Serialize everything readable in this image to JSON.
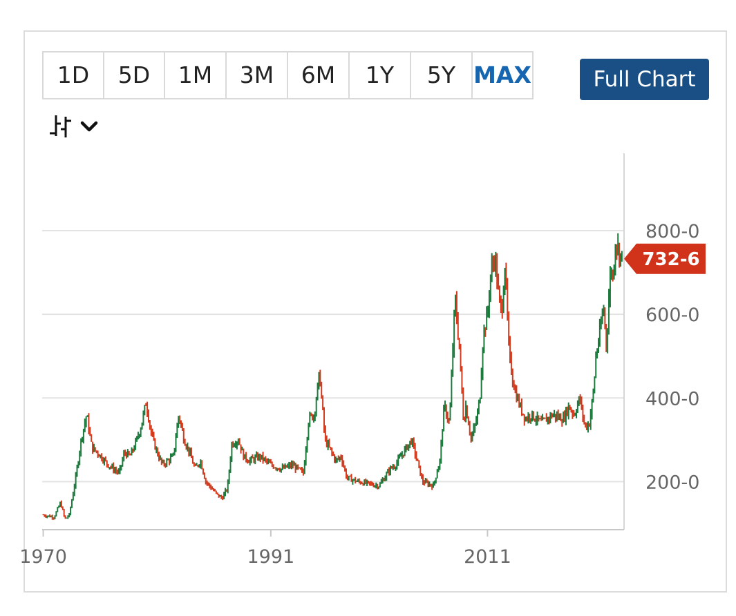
{
  "toolbar": {
    "tabs": [
      {
        "label": "1D"
      },
      {
        "label": "5D"
      },
      {
        "label": "1M"
      },
      {
        "label": "3M"
      },
      {
        "label": "6M"
      },
      {
        "label": "1Y"
      },
      {
        "label": "5Y"
      },
      {
        "label": "MAX"
      }
    ],
    "active_tab": "MAX",
    "full_chart_label": "Full Chart",
    "chart_type_icon": "ohlc-bars-icon",
    "dropdown_icon": "chevron-down-icon"
  },
  "colors": {
    "up": "#1b7a3c",
    "down": "#d23a1e",
    "accent": "#1565b0",
    "button": "#1a4f85",
    "price_tag": "#d0331a"
  },
  "chart_data": {
    "type": "ohlc",
    "title": "",
    "xlabel": "",
    "ylabel": "",
    "x_ticks": [
      "1970",
      "1991",
      "2011"
    ],
    "y_ticks": [
      "200-0",
      "400-0",
      "600-0",
      "800-0"
    ],
    "y_tick_values": [
      200,
      400,
      600,
      800
    ],
    "xlim": [
      1969.9,
      2023.6
    ],
    "ylim": [
      85,
      985
    ],
    "grid": "horizontal",
    "last_price_label": "732-6",
    "last_price": 732.75,
    "series": [
      {
        "x": [
          1970,
          1971,
          1971.6,
          1972,
          1972.4,
          1973,
          1973.5,
          1974,
          1974.5,
          1975,
          1976,
          1977,
          1977.5,
          1978,
          1978.5,
          1979,
          1979.5,
          1980,
          1980.5,
          1981,
          1982,
          1982.5,
          1983,
          1983.5,
          1984,
          1984.5,
          1985,
          1986,
          1986.5,
          1987,
          1987.4,
          1988,
          1988.5,
          1989,
          1990,
          1991,
          1992,
          1993,
          1994,
          1994.5,
          1995,
          1995.5,
          1996,
          1997,
          1997.5,
          1998,
          1999,
          2000,
          2001,
          2002,
          2002.5,
          2003,
          2003.5,
          2004,
          2005,
          2006,
          2006.6,
          2007,
          2007.5,
          2008,
          2008.4,
          2008.8,
          2009,
          2009.5,
          2010,
          2010.3,
          2010.6,
          2011,
          2011.3,
          2011.7,
          2012,
          2012.3,
          2012.6,
          2013,
          2013.5,
          2014,
          2014.5,
          2015,
          2016,
          2016.5,
          2017,
          2018,
          2018.5,
          2019,
          2019.5,
          2020,
          2020.4,
          2020.8,
          2021,
          2021.4,
          2021.7,
          2022,
          2022.2,
          2022.4,
          2022.6,
          2022.8,
          2023,
          2023.3,
          2023.5
        ],
        "close": [
          120,
          115,
          150,
          110,
          120,
          210,
          300,
          360,
          280,
          270,
          240,
          220,
          270,
          260,
          290,
          330,
          390,
          310,
          270,
          240,
          260,
          360,
          300,
          270,
          230,
          250,
          200,
          170,
          160,
          185,
          290,
          300,
          260,
          250,
          260,
          240,
          230,
          240,
          220,
          350,
          360,
          460,
          300,
          250,
          260,
          210,
          200,
          195,
          190,
          230,
          240,
          260,
          280,
          300,
          200,
          190,
          250,
          380,
          340,
          640,
          520,
          340,
          380,
          300,
          350,
          400,
          550,
          600,
          700,
          740,
          650,
          600,
          720,
          500,
          420,
          380,
          350,
          360,
          340,
          350,
          360,
          350,
          380,
          360,
          400,
          330,
          340,
          420,
          500,
          560,
          620,
          520,
          640,
          720,
          680,
          780,
          760,
          740,
          732.75
        ]
      }
    ]
  }
}
